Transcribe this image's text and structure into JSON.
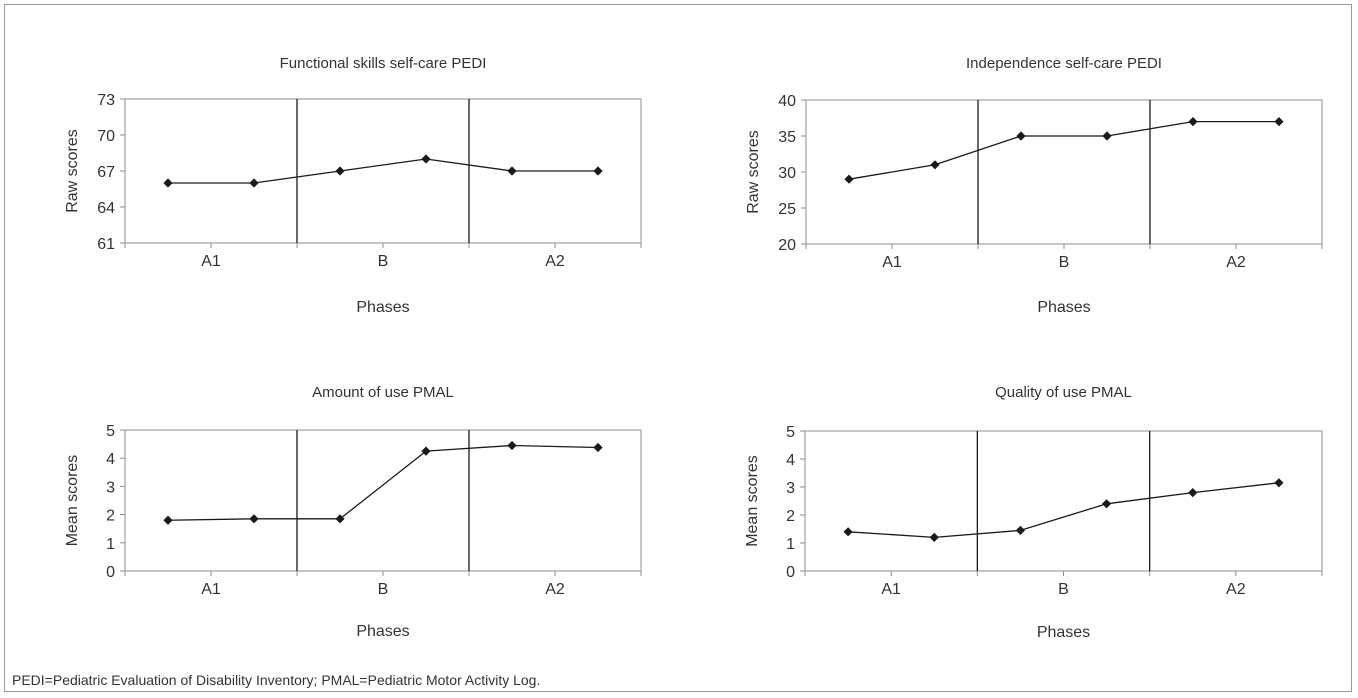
{
  "chart_data": [
    {
      "type": "line",
      "title": "Functional skills  self-care PEDI",
      "ylabel": "Raw scores",
      "xlabel": "Phases",
      "ylim": [
        61,
        73
      ],
      "yticks": [
        61,
        64,
        67,
        70,
        73
      ],
      "phases": [
        "A1",
        "B",
        "A2"
      ],
      "values": [
        66,
        66,
        67,
        68,
        67,
        67
      ],
      "grid": false,
      "legend": "none"
    },
    {
      "type": "line",
      "title": "Independence self-care PEDI",
      "ylabel": "Raw scores",
      "xlabel": "Phases",
      "ylim": [
        20,
        40
      ],
      "yticks": [
        20,
        25,
        30,
        35,
        40
      ],
      "phases": [
        "A1",
        "B",
        "A2"
      ],
      "values": [
        29,
        31,
        35,
        35,
        37,
        37
      ],
      "grid": false,
      "legend": "none"
    },
    {
      "type": "line",
      "title": "Amount of use PMAL",
      "ylabel": "Mean scores",
      "xlabel": "Phases",
      "ylim": [
        0,
        5
      ],
      "yticks": [
        0,
        1,
        2,
        3,
        4,
        5
      ],
      "phases": [
        "A1",
        "B",
        "A2"
      ],
      "values": [
        1.8,
        1.85,
        1.85,
        4.25,
        4.45,
        4.38
      ],
      "grid": false,
      "legend": "none"
    },
    {
      "type": "line",
      "title": "Quality of use PMAL",
      "ylabel": "Mean scores",
      "xlabel": "Phases",
      "ylim": [
        0,
        5
      ],
      "yticks": [
        0,
        1,
        2,
        3,
        4,
        5
      ],
      "phases": [
        "A1",
        "B",
        "A2"
      ],
      "values": [
        1.4,
        1.2,
        1.45,
        2.4,
        2.8,
        3.15
      ],
      "grid": false,
      "legend": "none"
    }
  ],
  "footnote": "PEDI=Pediatric Evaluation of Disability Inventory; PMAL=Pediatric Motor Activity Log."
}
